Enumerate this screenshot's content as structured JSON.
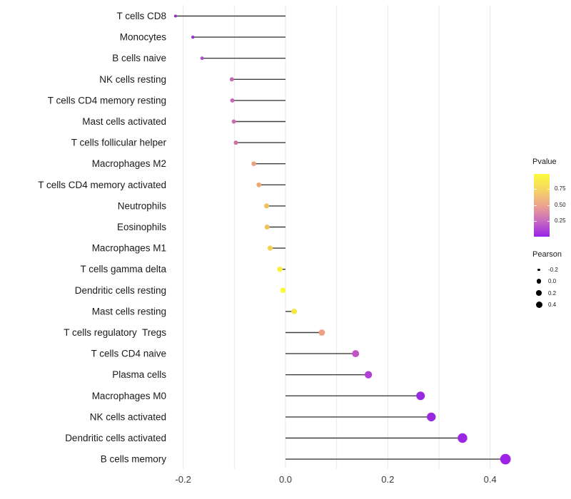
{
  "chart_data": {
    "type": "lollipop",
    "title": "",
    "xlabel": "",
    "ylabel": "",
    "categories": [
      "T cells CD8",
      "Monocytes",
      "B cells naive",
      "NK cells resting",
      "T cells CD4 memory resting",
      "Mast cells activated",
      "T cells follicular helper",
      "Macrophages M2",
      "T cells CD4 memory activated",
      "Neutrophils",
      "Eosinophils",
      "Macrophages M1",
      "T cells gamma delta",
      "Dendritic cells resting",
      "Mast cells resting",
      "T cells regulatory  Tregs",
      "T cells CD4 naive",
      "Plasma cells",
      "Macrophages M0",
      "NK cells activated",
      "Dendritic cells activated",
      "B cells memory"
    ],
    "series": [
      {
        "name": "Pearson correlation",
        "values": [
          -0.215,
          -0.181,
          -0.163,
          -0.105,
          -0.104,
          -0.101,
          -0.097,
          -0.062,
          -0.052,
          -0.037,
          -0.036,
          -0.03,
          -0.011,
          -0.005,
          0.017,
          0.071,
          0.137,
          0.162,
          0.264,
          0.285,
          0.346,
          0.43
        ]
      }
    ],
    "point_colors": [
      "#8B2FD0",
      "#9434D3",
      "#A84ECF",
      "#C468B8",
      "#C569B6",
      "#C86DB1",
      "#CC71A8",
      "#EBA181",
      "#EAAA77",
      "#EEC35E",
      "#EEC35E",
      "#F1D24C",
      "#F8F13F",
      "#FBFA39",
      "#F5E945",
      "#ED9F80",
      "#C253C7",
      "#B041D7",
      "#9929E1",
      "#9929E1",
      "#9A27E4",
      "#9D23E8"
    ],
    "x_axis": {
      "tick_labels": [
        "-0.2",
        "0.0",
        "0.2",
        "0.4"
      ],
      "tick_values": [
        -0.2,
        0.0,
        0.2,
        0.4
      ],
      "minor_gridline_values": [
        -0.1,
        0.1,
        0.3
      ],
      "range": [
        -0.26,
        0.48
      ]
    },
    "grid": "vertical-only",
    "legend_pvalue": {
      "title": "Pvalue",
      "tick_labels": [
        "0.75",
        "0.50",
        "0.25"
      ],
      "tick_fractions_from_top": [
        0.24,
        0.495,
        0.75
      ],
      "gradient_top_to_bottom": [
        "#FBFB3C",
        "#F7D563",
        "#ECA48E",
        "#C76BC0",
        "#9B23E9"
      ]
    },
    "legend_pearson": {
      "title": "Pearson",
      "entries": [
        {
          "label": "-0.2",
          "radius_px": 1.7
        },
        {
          "label": "0.0",
          "radius_px": 3.3
        },
        {
          "label": "0.2",
          "radius_px": 3.9
        },
        {
          "label": "0.4",
          "radius_px": 4.5
        }
      ]
    },
    "colors": {
      "background": "#ffffff",
      "gridline": "#e9e9e9",
      "stem": "#3f3f3f",
      "axis_text_x": "#3c3c3c",
      "axis_text_y": "#1a1a1a"
    }
  }
}
